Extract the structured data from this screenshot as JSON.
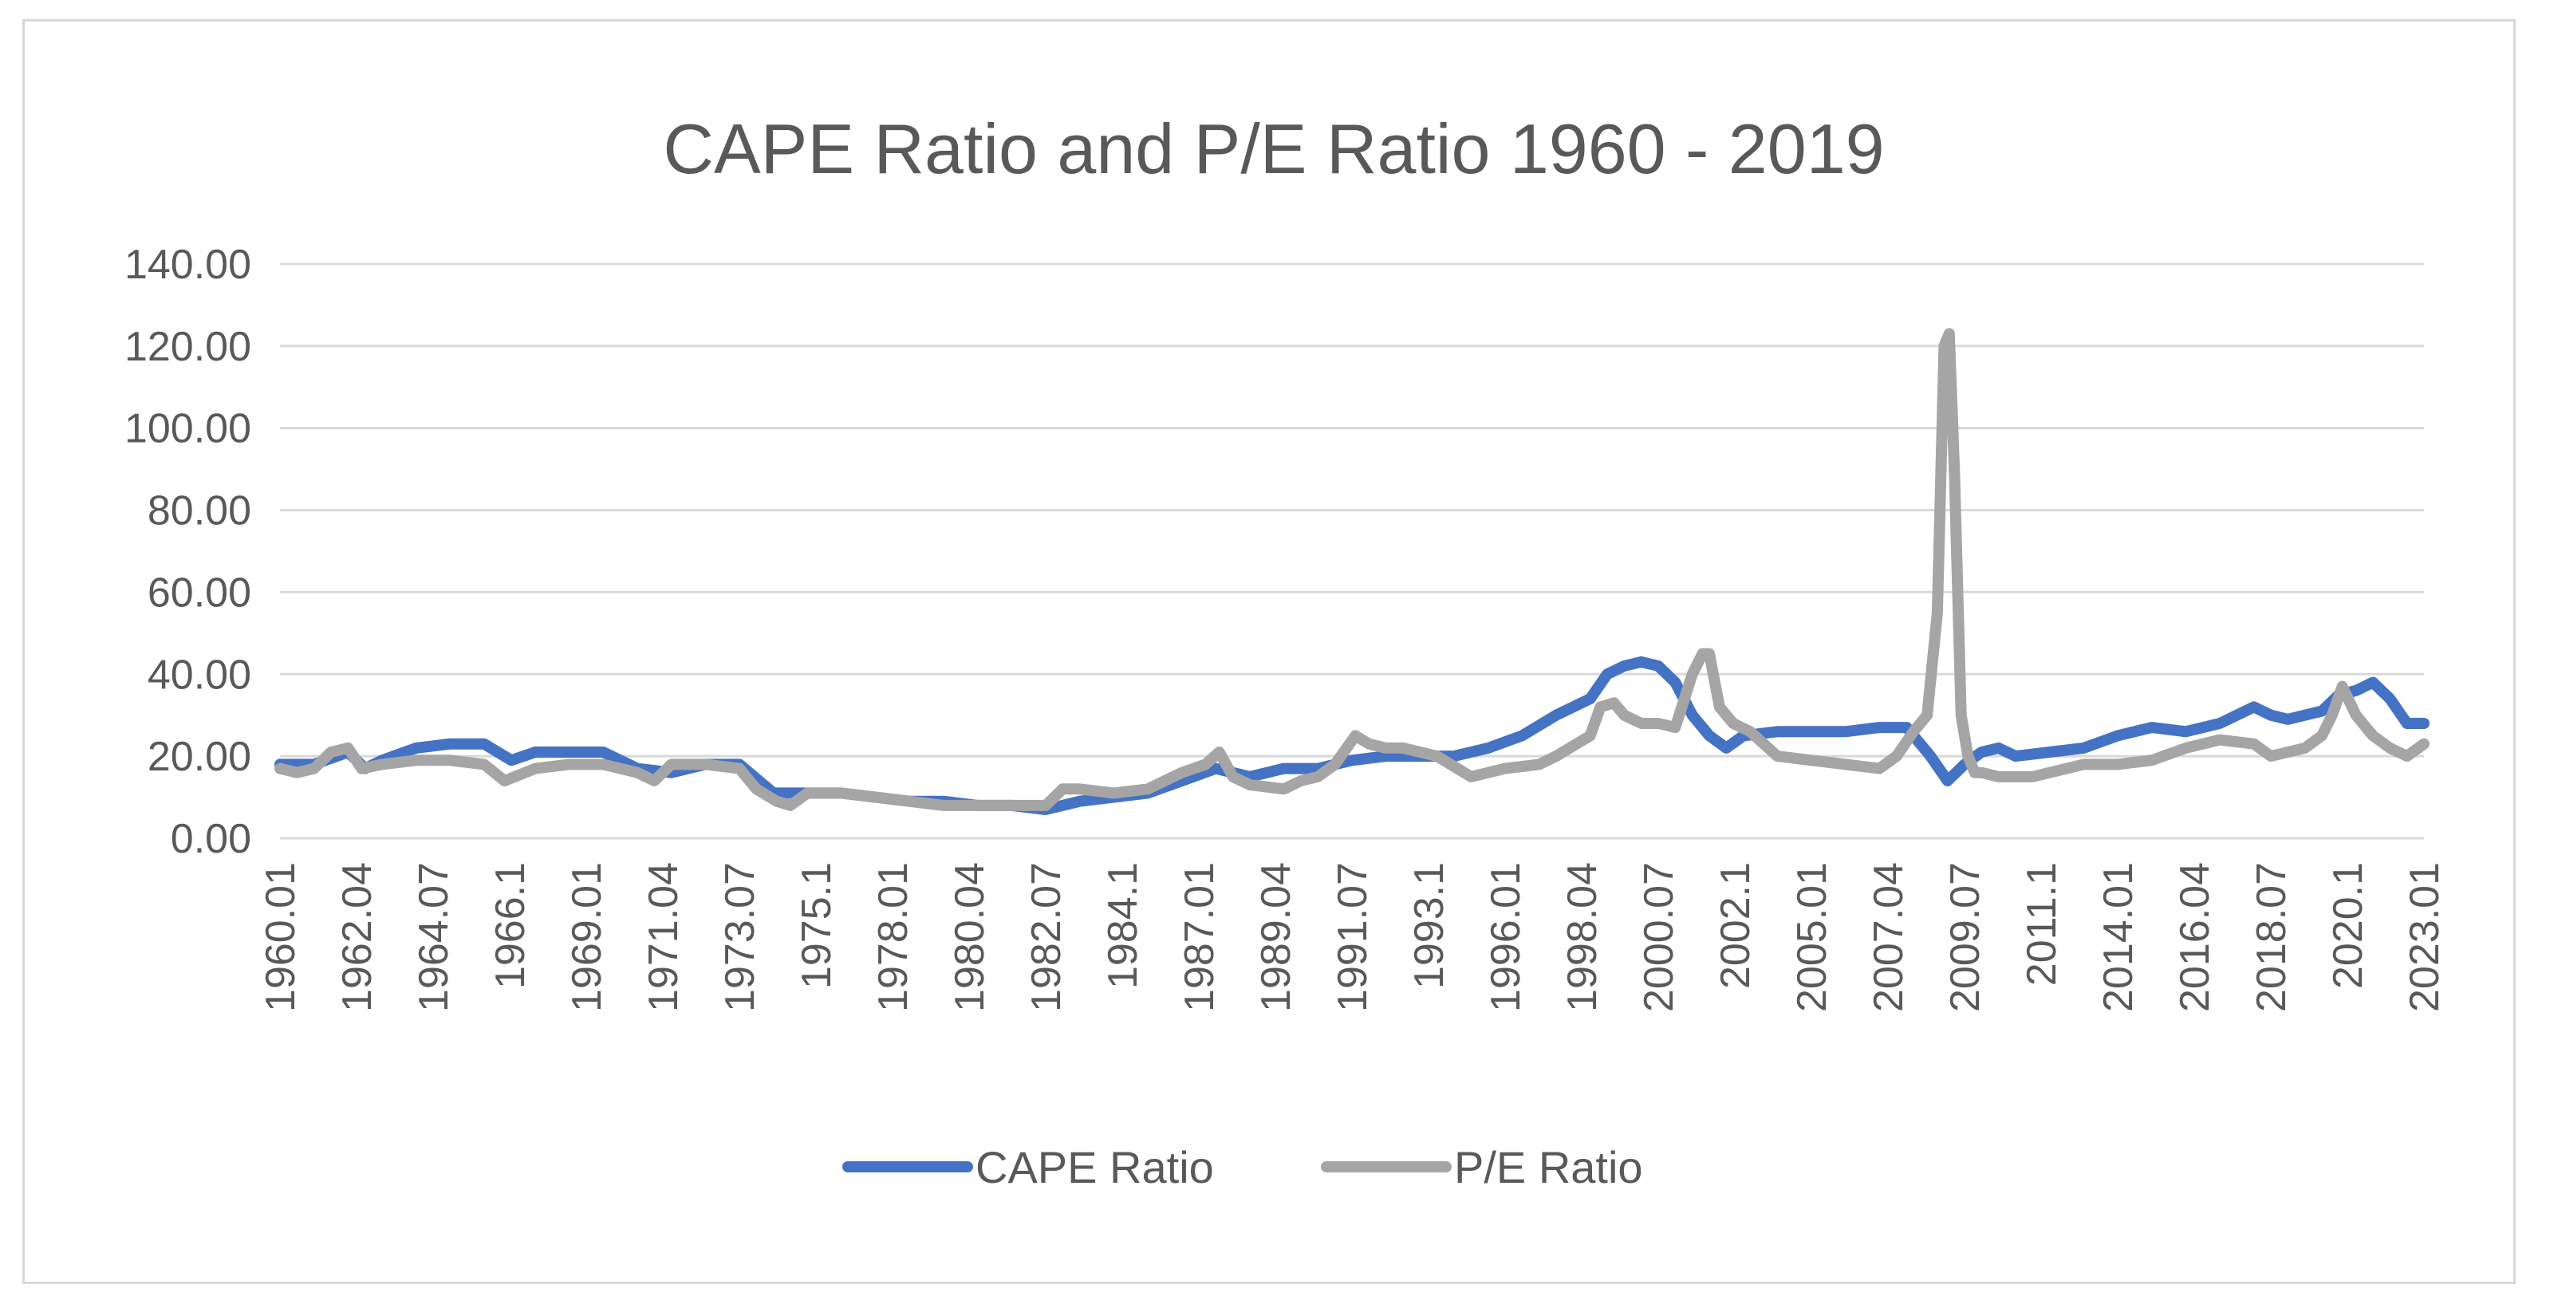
{
  "chart_data": {
    "type": "line",
    "title": "CAPE Ratio and P/E Ratio 1960 - 2019",
    "xlabel": "",
    "ylabel": "",
    "ylim": [
      0,
      140
    ],
    "y_ticks": [
      "0.00",
      "20.00",
      "40.00",
      "60.00",
      "80.00",
      "100.00",
      "120.00",
      "140.00"
    ],
    "x_ticks": [
      "1960.01",
      "1962.04",
      "1964.07",
      "1966.1",
      "1969.01",
      "1971.04",
      "1973.07",
      "1975.1",
      "1978.01",
      "1980.04",
      "1982.07",
      "1984.1",
      "1987.01",
      "1989.04",
      "1991.07",
      "1993.1",
      "1996.01",
      "1998.04",
      "2000.07",
      "2002.1",
      "2005.01",
      "2007.04",
      "2009.07",
      "2011.1",
      "2014.01",
      "2016.04",
      "2018.07",
      "2020.1",
      "2023.01"
    ],
    "grid": true,
    "legend_position": "bottom",
    "x_range": [
      1960.0,
      2023.0
    ],
    "series": [
      {
        "name": "CAPE Ratio",
        "color": "#4472c4",
        "x": [
          1960.0,
          1961.0,
          1962.0,
          1962.5,
          1963.0,
          1964.0,
          1965.0,
          1966.0,
          1966.8,
          1967.5,
          1968.5,
          1969.5,
          1970.5,
          1971.5,
          1972.5,
          1973.5,
          1974.5,
          1975.5,
          1976.5,
          1977.5,
          1978.5,
          1979.5,
          1980.5,
          1981.5,
          1982.5,
          1983.5,
          1984.5,
          1985.5,
          1986.5,
          1987.5,
          1988.5,
          1989.5,
          1990.5,
          1991.5,
          1992.5,
          1993.5,
          1994.5,
          1995.5,
          1996.5,
          1997.5,
          1998.5,
          1999.0,
          1999.5,
          2000.0,
          2000.5,
          2001.0,
          2001.5,
          2002.0,
          2002.5,
          2003.0,
          2004.0,
          2005.0,
          2006.0,
          2007.0,
          2007.8,
          2008.5,
          2009.0,
          2009.5,
          2010.0,
          2010.5,
          2011.0,
          2012.0,
          2013.0,
          2014.0,
          2015.0,
          2016.0,
          2017.0,
          2018.0,
          2018.5,
          2019.0,
          2019.5,
          2020.0,
          2020.5,
          2021.0,
          2021.5,
          2022.0,
          2022.5,
          2023.0
        ],
        "values": [
          18,
          18,
          21,
          17,
          19,
          22,
          23,
          23,
          19,
          21,
          21,
          21,
          17,
          16,
          18,
          18,
          11,
          11,
          11,
          10,
          9,
          9,
          8,
          8,
          7,
          9,
          10,
          11,
          14,
          17,
          15,
          17,
          17,
          19,
          20,
          20,
          20,
          22,
          25,
          30,
          34,
          40,
          42,
          43,
          42,
          38,
          30,
          25,
          22,
          25,
          26,
          26,
          26,
          27,
          27,
          20,
          14,
          18,
          21,
          22,
          20,
          21,
          22,
          25,
          27,
          26,
          28,
          32,
          30,
          29,
          30,
          31,
          35,
          36,
          38,
          34,
          28,
          28
        ]
      },
      {
        "name": "P/E Ratio",
        "color": "#a5a5a5",
        "x": [
          1960.0,
          1960.5,
          1961.0,
          1961.5,
          1962.0,
          1962.4,
          1963.0,
          1964.0,
          1965.0,
          1966.0,
          1966.6,
          1967.5,
          1968.5,
          1969.5,
          1970.5,
          1971.0,
          1971.5,
          1972.5,
          1973.5,
          1974.0,
          1974.6,
          1975.0,
          1975.5,
          1976.5,
          1977.5,
          1978.5,
          1979.5,
          1980.5,
          1981.5,
          1982.5,
          1983.0,
          1983.5,
          1984.5,
          1985.5,
          1986.5,
          1987.2,
          1987.6,
          1988.0,
          1988.5,
          1989.5,
          1990.0,
          1990.5,
          1991.0,
          1991.6,
          1992.0,
          1992.5,
          1993.0,
          1994.0,
          1995.0,
          1995.5,
          1996.0,
          1997.0,
          1997.5,
          1998.5,
          1998.8,
          1999.2,
          1999.5,
          2000.0,
          2000.5,
          2001.0,
          2001.5,
          2001.8,
          2002.0,
          2002.3,
          2002.7,
          2003.2,
          2004.0,
          2005.0,
          2006.0,
          2007.0,
          2007.5,
          2008.0,
          2008.4,
          2008.7,
          2008.9,
          2009.05,
          2009.2,
          2009.4,
          2009.6,
          2009.8,
          2010.0,
          2010.5,
          2011.0,
          2011.5,
          2012.0,
          2013.0,
          2014.0,
          2015.0,
          2016.0,
          2017.0,
          2018.0,
          2018.5,
          2019.0,
          2019.5,
          2020.0,
          2020.3,
          2020.6,
          2021.0,
          2021.5,
          2022.0,
          2022.5,
          2023.0
        ],
        "values": [
          17,
          16,
          17,
          21,
          22,
          17,
          18,
          19,
          19,
          18,
          14,
          17,
          18,
          18,
          16,
          14,
          18,
          18,
          17,
          12,
          9,
          8,
          11,
          11,
          10,
          9,
          8,
          8,
          8,
          8,
          12,
          12,
          11,
          12,
          16,
          18,
          21,
          15,
          13,
          12,
          14,
          15,
          18,
          25,
          23,
          22,
          22,
          20,
          15,
          16,
          17,
          18,
          20,
          25,
          32,
          33,
          30,
          28,
          28,
          27,
          40,
          45,
          45,
          32,
          28,
          26,
          20,
          19,
          18,
          17,
          20,
          26,
          30,
          55,
          120,
          123,
          90,
          30,
          20,
          16,
          16,
          15,
          15,
          15,
          16,
          18,
          18,
          19,
          22,
          24,
          23,
          20,
          21,
          22,
          25,
          30,
          37,
          30,
          25,
          22,
          20,
          23
        ]
      }
    ]
  }
}
